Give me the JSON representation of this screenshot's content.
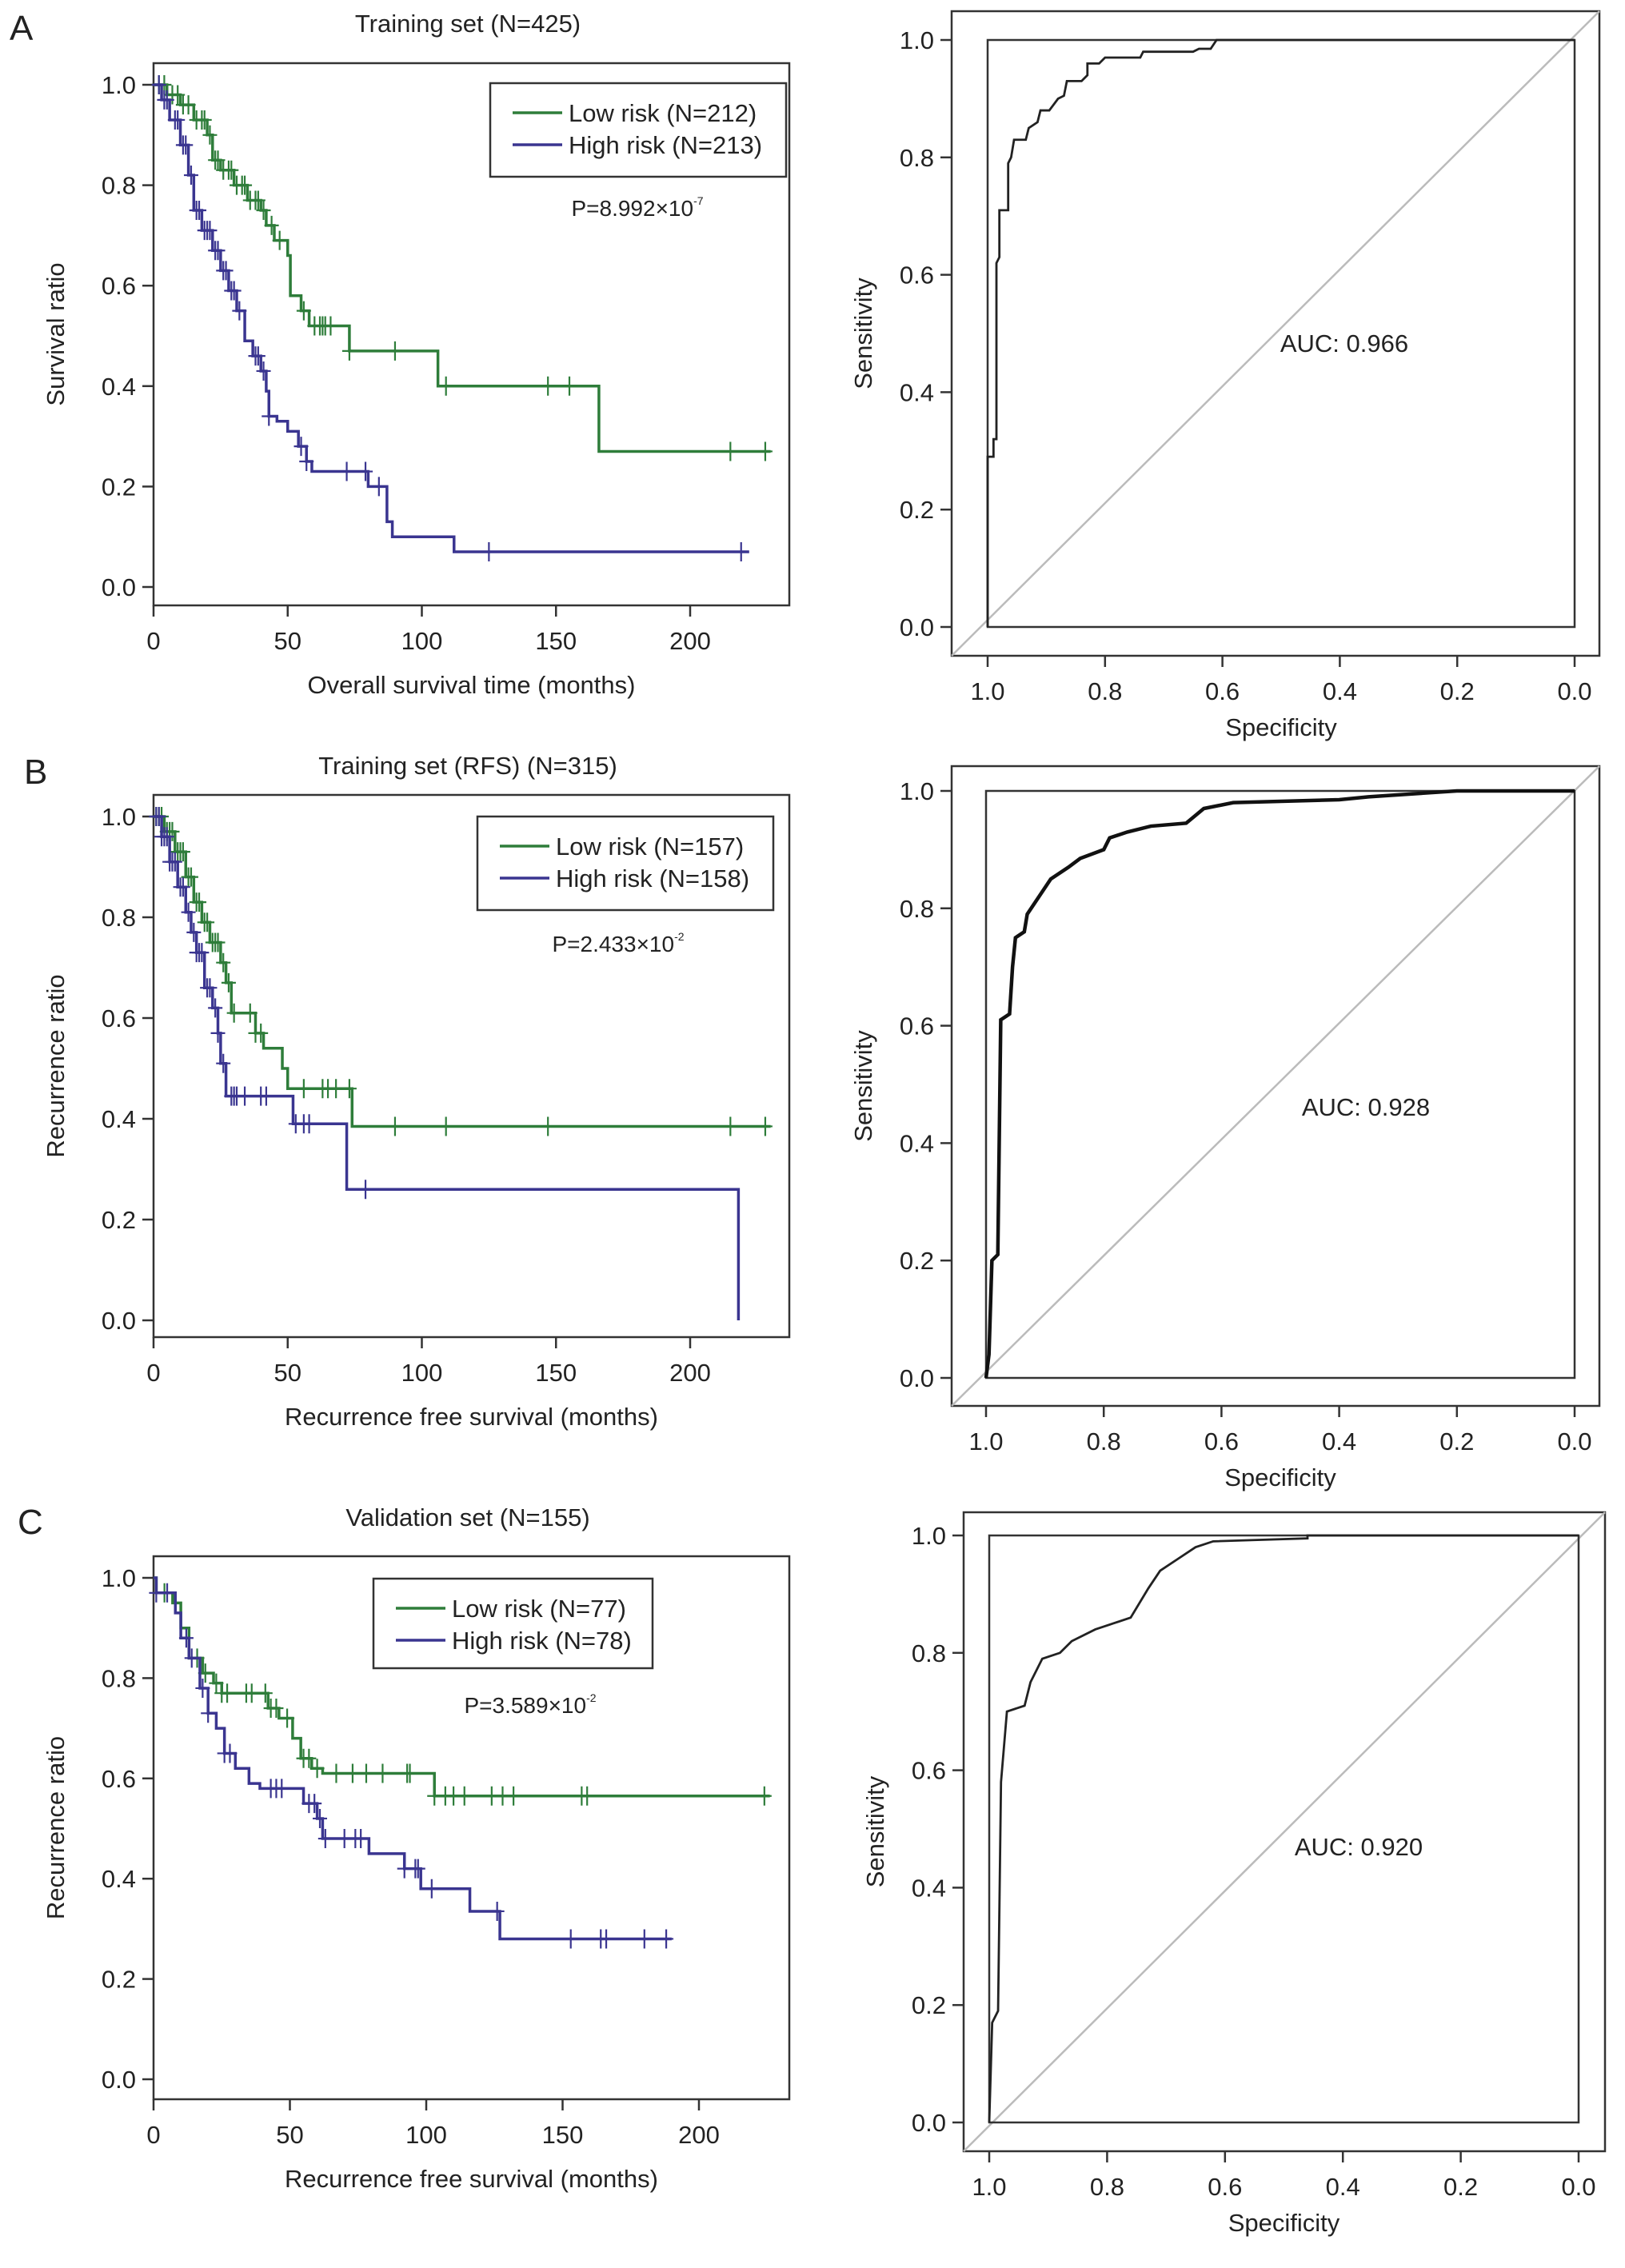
{
  "panel_labels": [
    "A",
    "B",
    "C"
  ],
  "chart_data": [
    {
      "type": "line",
      "kind": "kaplan-meier",
      "panel": "A",
      "title": "Training set (N=425)",
      "xlabel": "Overall survival time  (months)",
      "ylabel": "Survival ratio",
      "xlim": [
        0,
        230
      ],
      "ylim": [
        0,
        1
      ],
      "xticks": [
        0,
        50,
        100,
        150,
        200
      ],
      "yticks": [
        "0.0",
        "0.2",
        "0.4",
        "0.6",
        "0.8",
        "1.0"
      ],
      "p_value": {
        "text": "P=8.992×10",
        "exponent": "-7"
      },
      "legend_placement": "top-right",
      "series": [
        {
          "name": "Low risk  (N=212)",
          "color": "#2e7d3a",
          "steps": [
            [
              0,
              1
            ],
            [
              5,
              0.98
            ],
            [
              10,
              0.96
            ],
            [
              15,
              0.93
            ],
            [
              20,
              0.9
            ],
            [
              22,
              0.85
            ],
            [
              25,
              0.83
            ],
            [
              30,
              0.8
            ],
            [
              35,
              0.77
            ],
            [
              40,
              0.75
            ],
            [
              42,
              0.72
            ],
            [
              45,
              0.69
            ],
            [
              50,
              0.66
            ],
            [
              51,
              0.58
            ],
            [
              55,
              0.55
            ],
            [
              58,
              0.52
            ],
            [
              73,
              0.47
            ],
            [
              106,
              0.4
            ],
            [
              166,
              0.27
            ]
          ],
          "end": 230,
          "censored": [
            2,
            4,
            7,
            9,
            11,
            13,
            16,
            18,
            19,
            21,
            23,
            24,
            26,
            28,
            29,
            31,
            33,
            34,
            36,
            38,
            39,
            41,
            44,
            47,
            56,
            60,
            62,
            63,
            64,
            66,
            73,
            90,
            109,
            147,
            155,
            215,
            228
          ]
        },
        {
          "name": "High risk  (N=213)",
          "color": "#3a3590",
          "steps": [
            [
              0,
              1
            ],
            [
              3,
              0.97
            ],
            [
              6,
              0.93
            ],
            [
              10,
              0.88
            ],
            [
              13,
              0.82
            ],
            [
              15,
              0.75
            ],
            [
              18,
              0.71
            ],
            [
              22,
              0.67
            ],
            [
              25,
              0.63
            ],
            [
              28,
              0.59
            ],
            [
              31,
              0.55
            ],
            [
              34,
              0.49
            ],
            [
              37,
              0.46
            ],
            [
              40,
              0.43
            ],
            [
              42,
              0.39
            ],
            [
              43,
              0.34
            ],
            [
              46,
              0.33
            ],
            [
              50,
              0.31
            ],
            [
              54,
              0.28
            ],
            [
              57,
              0.25
            ],
            [
              59,
              0.23
            ],
            [
              80,
              0.2
            ],
            [
              87,
              0.13
            ],
            [
              89,
              0.1
            ],
            [
              112,
              0.07
            ]
          ],
          "end": 222,
          "censored": [
            2,
            4,
            5,
            8,
            9,
            11,
            12,
            14,
            16,
            17,
            19,
            20,
            21,
            23,
            24,
            26,
            27,
            29,
            30,
            32,
            38,
            39,
            41,
            43,
            55,
            57,
            72,
            79,
            84,
            125,
            219
          ]
        }
      ]
    },
    {
      "type": "line",
      "kind": "roc",
      "panel": "A",
      "xlabel": "Specificity",
      "ylabel": "Sensitivity",
      "xlim": [
        1,
        0
      ],
      "ylim": [
        0,
        1
      ],
      "xticks": [
        "1.0",
        "0.8",
        "0.6",
        "0.4",
        "0.2",
        "0.0"
      ],
      "yticks": [
        "0.0",
        "0.2",
        "0.4",
        "0.6",
        "0.8",
        "1.0"
      ],
      "auc_label": "AUC: 0.966",
      "auc": 0.966,
      "curve_color": "#222222",
      "diagonal_color": "#bbbbbb",
      "points": [
        [
          1,
          0
        ],
        [
          1,
          0.29
        ],
        [
          0.99,
          0.29
        ],
        [
          0.99,
          0.32
        ],
        [
          0.985,
          0.32
        ],
        [
          0.985,
          0.62
        ],
        [
          0.98,
          0.63
        ],
        [
          0.98,
          0.71
        ],
        [
          0.965,
          0.71
        ],
        [
          0.965,
          0.79
        ],
        [
          0.96,
          0.8
        ],
        [
          0.955,
          0.83
        ],
        [
          0.935,
          0.83
        ],
        [
          0.93,
          0.85
        ],
        [
          0.915,
          0.86
        ],
        [
          0.91,
          0.88
        ],
        [
          0.895,
          0.88
        ],
        [
          0.88,
          0.9
        ],
        [
          0.87,
          0.905
        ],
        [
          0.865,
          0.93
        ],
        [
          0.84,
          0.93
        ],
        [
          0.83,
          0.94
        ],
        [
          0.83,
          0.96
        ],
        [
          0.81,
          0.96
        ],
        [
          0.8,
          0.97
        ],
        [
          0.74,
          0.97
        ],
        [
          0.735,
          0.98
        ],
        [
          0.65,
          0.98
        ],
        [
          0.64,
          0.985
        ],
        [
          0.62,
          0.985
        ],
        [
          0.61,
          1
        ],
        [
          0,
          1
        ]
      ]
    },
    {
      "type": "line",
      "kind": "kaplan-meier",
      "panel": "B",
      "title": "Training set (RFS) (N=315)",
      "xlabel": "Recurrence free survival  (months)",
      "ylabel": "Recurrence ratio",
      "xlim": [
        0,
        230
      ],
      "ylim": [
        0,
        1
      ],
      "xticks": [
        0,
        50,
        100,
        150,
        200
      ],
      "yticks": [
        "0.0",
        "0.2",
        "0.4",
        "0.6",
        "0.8",
        "1.0"
      ],
      "p_value": {
        "text": "P=2.433×10",
        "exponent": "-2"
      },
      "legend_placement": "top-right",
      "series": [
        {
          "name": "Low risk  (N=157)",
          "color": "#2e7d3a",
          "steps": [
            [
              0,
              1
            ],
            [
              4,
              0.97
            ],
            [
              8,
              0.93
            ],
            [
              12,
              0.88
            ],
            [
              15,
              0.83
            ],
            [
              18,
              0.79
            ],
            [
              21,
              0.75
            ],
            [
              25,
              0.71
            ],
            [
              27,
              0.67
            ],
            [
              29,
              0.61
            ],
            [
              38,
              0.57
            ],
            [
              41,
              0.54
            ],
            [
              48,
              0.5
            ],
            [
              50,
              0.46
            ],
            [
              74,
              0.385
            ]
          ],
          "end": 230,
          "censored": [
            1,
            2,
            3,
            5,
            6,
            7,
            9,
            10,
            11,
            13,
            14,
            16,
            17,
            19,
            20,
            22,
            23,
            24,
            26,
            28,
            30,
            36,
            38,
            40,
            56,
            63,
            65,
            68,
            73,
            90,
            109,
            147,
            215,
            228
          ]
        },
        {
          "name": "High risk  (N=158)",
          "color": "#3a3590",
          "steps": [
            [
              0,
              1
            ],
            [
              3,
              0.96
            ],
            [
              6,
              0.91
            ],
            [
              9,
              0.86
            ],
            [
              12,
              0.81
            ],
            [
              14,
              0.77
            ],
            [
              16,
              0.73
            ],
            [
              19,
              0.66
            ],
            [
              22,
              0.62
            ],
            [
              24,
              0.57
            ],
            [
              25,
              0.51
            ],
            [
              27,
              0.445
            ],
            [
              52,
              0.39
            ],
            [
              72,
              0.26
            ],
            [
              218,
              0
            ]
          ],
          "end": 218,
          "censored": [
            1,
            2,
            3,
            4,
            5,
            6,
            7,
            8,
            10,
            11,
            13,
            15,
            16,
            17,
            18,
            20,
            21,
            23,
            24,
            26,
            29,
            30,
            31,
            34,
            40,
            42,
            53,
            56,
            58,
            79
          ]
        }
      ]
    },
    {
      "type": "line",
      "kind": "roc",
      "panel": "B",
      "xlabel": "Specificity",
      "ylabel": "Sensitivity",
      "xlim": [
        1,
        0
      ],
      "ylim": [
        0,
        1
      ],
      "xticks": [
        "1.0",
        "0.8",
        "0.6",
        "0.4",
        "0.2",
        "0.0"
      ],
      "yticks": [
        "0.0",
        "0.2",
        "0.4",
        "0.6",
        "0.8",
        "1.0"
      ],
      "auc_label": "AUC: 0.928",
      "auc": 0.928,
      "curve_color": "#111111",
      "diagonal_color": "#bbbbbb",
      "points": [
        [
          1,
          0
        ],
        [
          0.995,
          0.04
        ],
        [
          0.99,
          0.2
        ],
        [
          0.98,
          0.21
        ],
        [
          0.975,
          0.61
        ],
        [
          0.96,
          0.62
        ],
        [
          0.955,
          0.7
        ],
        [
          0.95,
          0.75
        ],
        [
          0.935,
          0.76
        ],
        [
          0.93,
          0.79
        ],
        [
          0.91,
          0.82
        ],
        [
          0.89,
          0.85
        ],
        [
          0.86,
          0.87
        ],
        [
          0.84,
          0.885
        ],
        [
          0.8,
          0.9
        ],
        [
          0.79,
          0.92
        ],
        [
          0.76,
          0.93
        ],
        [
          0.72,
          0.94
        ],
        [
          0.66,
          0.945
        ],
        [
          0.63,
          0.97
        ],
        [
          0.58,
          0.98
        ],
        [
          0.4,
          0.985
        ],
        [
          0.35,
          0.99
        ],
        [
          0.2,
          1
        ],
        [
          0,
          1
        ]
      ]
    },
    {
      "type": "line",
      "kind": "kaplan-meier",
      "panel": "C",
      "title": "Validation set (N=155)",
      "xlabel": "Recurrence free survival  (months)",
      "ylabel": "Recurrence ratio",
      "xlim": [
        0,
        230
      ],
      "ylim": [
        0,
        1
      ],
      "xticks": [
        0,
        50,
        100,
        150,
        200
      ],
      "yticks": [
        "0.0",
        "0.2",
        "0.4",
        "0.6",
        "0.8",
        "1.0"
      ],
      "p_value": {
        "text": "P=3.589×10",
        "exponent": "-2"
      },
      "legend_placement": "top-right",
      "series": [
        {
          "name": "Low risk (N=77)",
          "color": "#2e7d3a",
          "steps": [
            [
              0,
              1
            ],
            [
              1,
              0.97
            ],
            [
              7,
              0.95
            ],
            [
              10,
              0.9
            ],
            [
              13,
              0.84
            ],
            [
              18,
              0.81
            ],
            [
              22,
              0.79
            ],
            [
              25,
              0.77
            ],
            [
              42,
              0.74
            ],
            [
              46,
              0.72
            ],
            [
              51,
              0.68
            ],
            [
              54,
              0.64
            ],
            [
              58,
              0.62
            ],
            [
              62,
              0.61
            ],
            [
              103,
              0.565
            ]
          ],
          "end": 226,
          "censored": [
            4,
            16,
            19,
            23,
            25,
            27,
            34,
            36,
            41,
            43,
            45,
            49,
            55,
            57,
            60,
            67,
            73,
            78,
            84,
            93,
            94,
            103,
            107,
            110,
            114,
            124,
            128,
            132,
            157,
            159,
            224
          ]
        },
        {
          "name": "High risk (N=78)",
          "color": "#3a3590",
          "steps": [
            [
              0,
              1
            ],
            [
              1,
              0.97
            ],
            [
              8,
              0.93
            ],
            [
              10,
              0.88
            ],
            [
              13,
              0.84
            ],
            [
              17,
              0.78
            ],
            [
              20,
              0.73
            ],
            [
              23,
              0.7
            ],
            [
              26,
              0.65
            ],
            [
              30,
              0.62
            ],
            [
              35,
              0.59
            ],
            [
              39,
              0.58
            ],
            [
              55,
              0.55
            ],
            [
              60,
              0.52
            ],
            [
              62,
              0.48
            ],
            [
              79,
              0.45
            ],
            [
              92,
              0.42
            ],
            [
              98,
              0.38
            ],
            [
              116,
              0.335
            ],
            [
              127,
              0.28
            ]
          ],
          "end": 190,
          "censored": [
            1,
            5,
            12,
            14,
            18,
            20,
            26,
            28,
            43,
            45,
            47,
            57,
            59,
            61,
            63,
            70,
            74,
            76,
            92,
            96,
            97,
            102,
            126,
            153,
            164,
            166,
            180,
            188
          ]
        }
      ]
    },
    {
      "type": "line",
      "kind": "roc",
      "panel": "C",
      "xlabel": "Specificity",
      "ylabel": "Sensitivity",
      "xlim": [
        1,
        0
      ],
      "ylim": [
        0,
        1
      ],
      "xticks": [
        "1.0",
        "0.8",
        "0.6",
        "0.4",
        "0.2",
        "0.0"
      ],
      "yticks": [
        "0.0",
        "0.2",
        "0.4",
        "0.6",
        "0.8",
        "1.0"
      ],
      "auc_label": "AUC: 0.920",
      "auc": 0.92,
      "curve_color": "#222222",
      "diagonal_color": "#bbbbbb",
      "points": [
        [
          1,
          0
        ],
        [
          0.995,
          0.17
        ],
        [
          0.985,
          0.19
        ],
        [
          0.98,
          0.58
        ],
        [
          0.97,
          0.7
        ],
        [
          0.94,
          0.71
        ],
        [
          0.93,
          0.75
        ],
        [
          0.91,
          0.79
        ],
        [
          0.88,
          0.8
        ],
        [
          0.86,
          0.82
        ],
        [
          0.82,
          0.84
        ],
        [
          0.79,
          0.85
        ],
        [
          0.76,
          0.86
        ],
        [
          0.73,
          0.91
        ],
        [
          0.71,
          0.94
        ],
        [
          0.68,
          0.96
        ],
        [
          0.65,
          0.98
        ],
        [
          0.62,
          0.99
        ],
        [
          0.46,
          0.995
        ],
        [
          0.46,
          1
        ],
        [
          0,
          1
        ]
      ]
    }
  ]
}
